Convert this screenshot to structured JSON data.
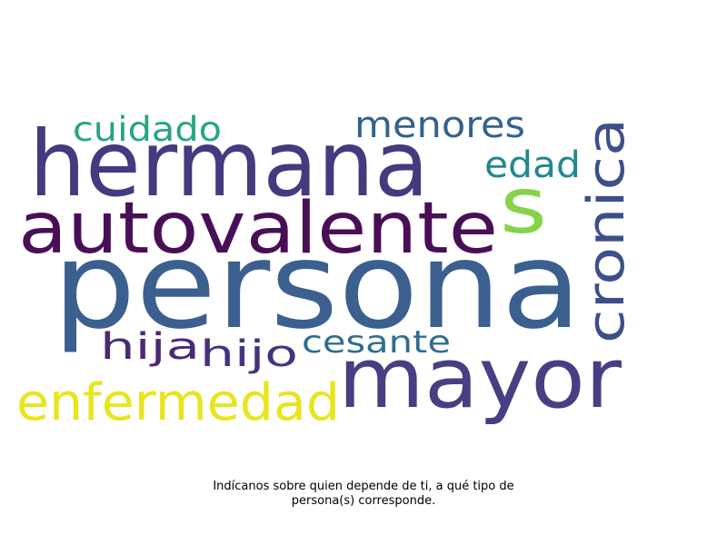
{
  "word_cloud": {
    "words": [
      {
        "text": "persona",
        "color": "#3b5f8f"
      },
      {
        "text": "hermana",
        "color": "#433a7f"
      },
      {
        "text": "mayor",
        "color": "#463f83"
      },
      {
        "text": "autovalente",
        "color": "#480f57"
      },
      {
        "text": "cronica",
        "color": "#3e4e8a"
      },
      {
        "text": "enfermedad",
        "color": "#e7e51e"
      },
      {
        "text": "s",
        "color": "#86d34a"
      },
      {
        "text": "menores",
        "color": "#33628d"
      },
      {
        "text": "cuidado",
        "color": "#25a584"
      },
      {
        "text": "edad",
        "color": "#23888e"
      },
      {
        "text": "hija",
        "color": "#4c2a73"
      },
      {
        "text": "hijo",
        "color": "#46327e"
      },
      {
        "text": "cesante",
        "color": "#2f6e8e"
      }
    ]
  },
  "caption": {
    "line1": "Indícanos sobre quien depende de ti, a qué tipo de",
    "line2": "persona(s) corresponde."
  }
}
